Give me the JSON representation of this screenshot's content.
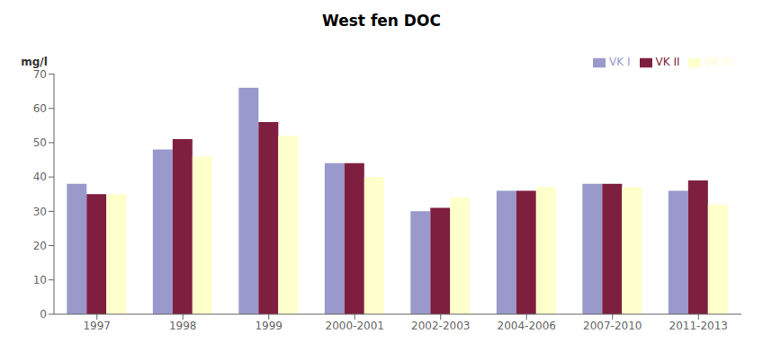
{
  "chart_data": {
    "type": "bar",
    "title": "West fen DOC",
    "ylabel": "mg/l",
    "categories": [
      "1997",
      "1998",
      "1999",
      "2000-2001",
      "2002-2003",
      "2004-2006",
      "2007-2010",
      "2011-2013"
    ],
    "series": [
      {
        "name": "VK I",
        "color": "#9999cc",
        "values": [
          38,
          48,
          66,
          44,
          30,
          36,
          38,
          36
        ]
      },
      {
        "name": "VK II",
        "color": "#7f1f3f",
        "values": [
          35,
          51,
          56,
          44,
          31,
          36,
          38,
          39
        ]
      },
      {
        "name": "VK III",
        "color": "#ffffcc",
        "values": [
          35,
          46,
          52,
          40,
          34,
          37,
          37,
          32
        ]
      }
    ],
    "ylim": [
      0,
      70
    ],
    "yticks": [
      0,
      10,
      20,
      30,
      40,
      50,
      60,
      70
    ],
    "grid": false,
    "legend": "upper right"
  }
}
